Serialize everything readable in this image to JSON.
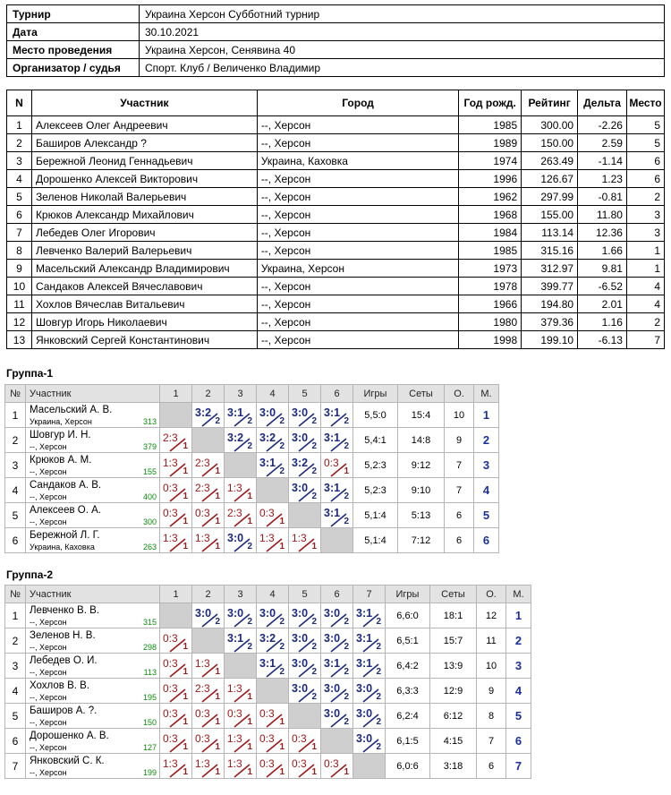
{
  "info": [
    {
      "key": "Турнир",
      "value": "Украина Херсон Субботний турнир"
    },
    {
      "key": "Дата",
      "value": "30.10.2021"
    },
    {
      "key": "Место проведения",
      "value": "Украина Херсон, Сенявина 40"
    },
    {
      "key": "Организатор / судья",
      "value": "Спорт. Клуб / Величенко Владимир"
    }
  ],
  "participants": {
    "headers": [
      "N",
      "Участник",
      "Город",
      "Год рожд.",
      "Рейтинг",
      "Дельта",
      "Место"
    ],
    "rows": [
      [
        "1",
        "Алексеев Олег Андреевич",
        "--, Херсон",
        "1985",
        "300.00",
        "-2.26",
        "5"
      ],
      [
        "2",
        "Баширов Александр ?",
        "--, Херсон",
        "1989",
        "150.00",
        "2.59",
        "5"
      ],
      [
        "3",
        "Бережной Леонид Геннадьевич",
        "Украина, Каховка",
        "1974",
        "263.49",
        "-1.14",
        "6"
      ],
      [
        "4",
        "Дорошенко Алексей Викторович",
        "--, Херсон",
        "1996",
        "126.67",
        "1.23",
        "6"
      ],
      [
        "5",
        "Зеленов Николай Валерьевич",
        "--, Херсон",
        "1962",
        "297.99",
        "-0.81",
        "2"
      ],
      [
        "6",
        "Крюков Александр Михайлович",
        "--, Херсон",
        "1968",
        "155.00",
        "11.80",
        "3"
      ],
      [
        "7",
        "Лебедев Олег Игорович",
        "--, Херсон",
        "1984",
        "113.14",
        "12.36",
        "3"
      ],
      [
        "8",
        "Левченко Валерий Валерьевич",
        "--, Херсон",
        "1985",
        "315.16",
        "1.66",
        "1"
      ],
      [
        "9",
        "Масельский Александр Владимирович",
        "Украина, Херсон",
        "1973",
        "312.97",
        "9.81",
        "1"
      ],
      [
        "10",
        "Сандаков Алексей Вячеславович",
        "--, Херсон",
        "1978",
        "399.77",
        "-6.52",
        "4"
      ],
      [
        "11",
        "Хохлов Вячеслав Витальевич",
        "--, Херсон",
        "1966",
        "194.80",
        "2.01",
        "4"
      ],
      [
        "12",
        "Шовгур Игорь Николаевич",
        "--, Херсон",
        "1980",
        "379.36",
        "1.16",
        "2"
      ],
      [
        "13",
        "Янковский Сергей Константинович",
        "--, Херсон",
        "1998",
        "199.10",
        "-6.13",
        "7"
      ]
    ]
  },
  "group_header": {
    "num": "№",
    "name": "Участник",
    "games": "Игры",
    "sets": "Сеты",
    "points": "О.",
    "place": "М."
  },
  "groups": [
    {
      "title": "Группа-1",
      "cols": [
        "1",
        "2",
        "3",
        "4",
        "5",
        "6"
      ],
      "players": [
        {
          "n": "1",
          "name": "Масельский А. В.",
          "city": "Украина, Херсон",
          "rating": "313",
          "games": "5,5:0",
          "sets": "15:4",
          "points": "10",
          "place": "1",
          "results": [
            null,
            [
              "3:2",
              "2"
            ],
            [
              "3:1",
              "2"
            ],
            [
              "3:0",
              "2"
            ],
            [
              "3:0",
              "2"
            ],
            [
              "3:1",
              "2"
            ]
          ]
        },
        {
          "n": "2",
          "name": "Шовгур И. Н.",
          "city": "--, Херсон",
          "rating": "379",
          "games": "5,4:1",
          "sets": "14:8",
          "points": "9",
          "place": "2",
          "results": [
            [
              "2:3",
              "1"
            ],
            null,
            [
              "3:2",
              "2"
            ],
            [
              "3:2",
              "2"
            ],
            [
              "3:0",
              "2"
            ],
            [
              "3:1",
              "2"
            ]
          ]
        },
        {
          "n": "3",
          "name": "Крюков А. М.",
          "city": "--, Херсон",
          "rating": "155",
          "games": "5,2:3",
          "sets": "9:12",
          "points": "7",
          "place": "3",
          "results": [
            [
              "1:3",
              "1"
            ],
            [
              "2:3",
              "1"
            ],
            null,
            [
              "3:1",
              "2"
            ],
            [
              "3:2",
              "2"
            ],
            [
              "0:3",
              "1"
            ]
          ]
        },
        {
          "n": "4",
          "name": "Сандаков А. В.",
          "city": "--, Херсон",
          "rating": "400",
          "games": "5,2:3",
          "sets": "9:10",
          "points": "7",
          "place": "4",
          "results": [
            [
              "0:3",
              "1"
            ],
            [
              "2:3",
              "1"
            ],
            [
              "1:3",
              "1"
            ],
            null,
            [
              "3:0",
              "2"
            ],
            [
              "3:1",
              "2"
            ]
          ]
        },
        {
          "n": "5",
          "name": "Алексеев О. А.",
          "city": "--, Херсон",
          "rating": "300",
          "games": "5,1:4",
          "sets": "5:13",
          "points": "6",
          "place": "5",
          "results": [
            [
              "0:3",
              "1"
            ],
            [
              "0:3",
              "1"
            ],
            [
              "2:3",
              "1"
            ],
            [
              "0:3",
              "1"
            ],
            null,
            [
              "3:1",
              "2"
            ]
          ]
        },
        {
          "n": "6",
          "name": "Бережной Л. Г.",
          "city": "Украина, Каховка",
          "rating": "263",
          "games": "5,1:4",
          "sets": "7:12",
          "points": "6",
          "place": "6",
          "results": [
            [
              "1:3",
              "1"
            ],
            [
              "1:3",
              "1"
            ],
            [
              "3:0",
              "2"
            ],
            [
              "1:3",
              "1"
            ],
            [
              "1:3",
              "1"
            ],
            null
          ]
        }
      ]
    },
    {
      "title": "Группа-2",
      "cols": [
        "1",
        "2",
        "3",
        "4",
        "5",
        "6",
        "7"
      ],
      "players": [
        {
          "n": "1",
          "name": "Левченко В. В.",
          "city": "--, Херсон",
          "rating": "315",
          "games": "6,6:0",
          "sets": "18:1",
          "points": "12",
          "place": "1",
          "results": [
            null,
            [
              "3:0",
              "2"
            ],
            [
              "3:0",
              "2"
            ],
            [
              "3:0",
              "2"
            ],
            [
              "3:0",
              "2"
            ],
            [
              "3:0",
              "2"
            ],
            [
              "3:1",
              "2"
            ]
          ]
        },
        {
          "n": "2",
          "name": "Зеленов Н. В.",
          "city": "--, Херсон",
          "rating": "298",
          "games": "6,5:1",
          "sets": "15:7",
          "points": "11",
          "place": "2",
          "results": [
            [
              "0:3",
              "1"
            ],
            null,
            [
              "3:1",
              "2"
            ],
            [
              "3:2",
              "2"
            ],
            [
              "3:0",
              "2"
            ],
            [
              "3:0",
              "2"
            ],
            [
              "3:1",
              "2"
            ]
          ]
        },
        {
          "n": "3",
          "name": "Лебедев О. И.",
          "city": "--, Херсон",
          "rating": "113",
          "games": "6,4:2",
          "sets": "13:9",
          "points": "10",
          "place": "3",
          "results": [
            [
              "0:3",
              "1"
            ],
            [
              "1:3",
              "1"
            ],
            null,
            [
              "3:1",
              "2"
            ],
            [
              "3:0",
              "2"
            ],
            [
              "3:1",
              "2"
            ],
            [
              "3:1",
              "2"
            ]
          ]
        },
        {
          "n": "4",
          "name": "Хохлов В. В.",
          "city": "--, Херсон",
          "rating": "195",
          "games": "6,3:3",
          "sets": "12:9",
          "points": "9",
          "place": "4",
          "results": [
            [
              "0:3",
              "1"
            ],
            [
              "2:3",
              "1"
            ],
            [
              "1:3",
              "1"
            ],
            null,
            [
              "3:0",
              "2"
            ],
            [
              "3:0",
              "2"
            ],
            [
              "3:0",
              "2"
            ]
          ]
        },
        {
          "n": "5",
          "name": "Баширов А. ?.",
          "city": "--, Херсон",
          "rating": "150",
          "games": "6,2:4",
          "sets": "6:12",
          "points": "8",
          "place": "5",
          "results": [
            [
              "0:3",
              "1"
            ],
            [
              "0:3",
              "1"
            ],
            [
              "0:3",
              "1"
            ],
            [
              "0:3",
              "1"
            ],
            null,
            [
              "3:0",
              "2"
            ],
            [
              "3:0",
              "2"
            ]
          ]
        },
        {
          "n": "6",
          "name": "Дорошенко А. В.",
          "city": "--, Херсон",
          "rating": "127",
          "games": "6,1:5",
          "sets": "4:15",
          "points": "7",
          "place": "6",
          "results": [
            [
              "0:3",
              "1"
            ],
            [
              "0:3",
              "1"
            ],
            [
              "1:3",
              "1"
            ],
            [
              "0:3",
              "1"
            ],
            [
              "0:3",
              "1"
            ],
            null,
            [
              "3:0",
              "2"
            ]
          ]
        },
        {
          "n": "7",
          "name": "Янковский С. К.",
          "city": "--, Херсон",
          "rating": "199",
          "games": "6,0:6",
          "sets": "3:18",
          "points": "6",
          "place": "7",
          "results": [
            [
              "1:3",
              "1"
            ],
            [
              "1:3",
              "1"
            ],
            [
              "1:3",
              "1"
            ],
            [
              "0:3",
              "1"
            ],
            [
              "0:3",
              "1"
            ],
            [
              "0:3",
              "1"
            ],
            null
          ]
        }
      ]
    }
  ]
}
